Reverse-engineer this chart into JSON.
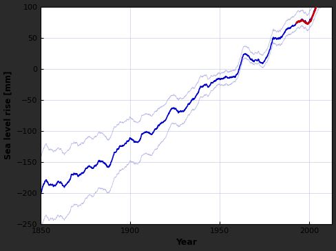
{
  "title": "",
  "xlabel": "Year",
  "ylabel": "Sea level rise [mm]",
  "xlim": [
    1850,
    2013
  ],
  "ylim": [
    -250,
    100
  ],
  "yticks": [
    -250,
    -200,
    -150,
    -100,
    -50,
    0,
    50,
    100
  ],
  "xticks": [
    1850,
    1900,
    1950,
    2000
  ],
  "grid_color": "#b0b8d8",
  "bg_color": "#ffffff",
  "outer_bg": "#2a2a2a",
  "main_line_color": "#0000cc",
  "satellite_line_color": "#cc0000",
  "uncertainty_color": "#9999dd",
  "start_year": 1850,
  "end_year": 2012,
  "satellite_start_year": 1993,
  "figsize": [
    4.88,
    3.64
  ],
  "dpi": 100
}
